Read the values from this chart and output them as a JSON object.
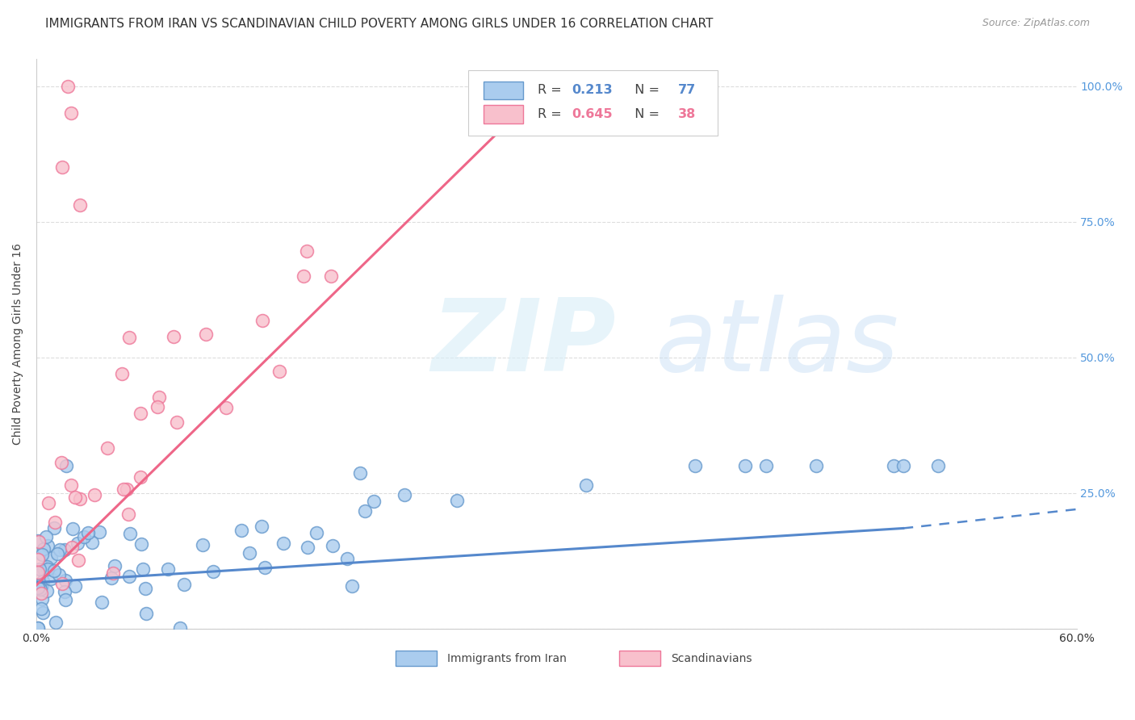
{
  "title": "IMMIGRANTS FROM IRAN VS SCANDINAVIAN CHILD POVERTY AMONG GIRLS UNDER 16 CORRELATION CHART",
  "source": "Source: ZipAtlas.com",
  "ylabel": "Child Poverty Among Girls Under 16",
  "xlim": [
    0.0,
    0.6
  ],
  "ylim": [
    0.0,
    1.05
  ],
  "iran_R": "0.213",
  "iran_N": "77",
  "scand_R": "0.645",
  "scand_N": "38",
  "iran_color": "#aaccee",
  "iran_edge_color": "#6699cc",
  "scand_color": "#f8c0cc",
  "scand_edge_color": "#ee7799",
  "iran_trend_color": "#5588cc",
  "scand_trend_color": "#ee6688",
  "right_tick_color": "#5599dd",
  "background_color": "#ffffff",
  "grid_color": "#dddddd",
  "title_fontsize": 11,
  "axis_label_fontsize": 10,
  "tick_fontsize": 10,
  "legend_label1": "Immigrants from Iran",
  "legend_label2": "Scandinavians"
}
